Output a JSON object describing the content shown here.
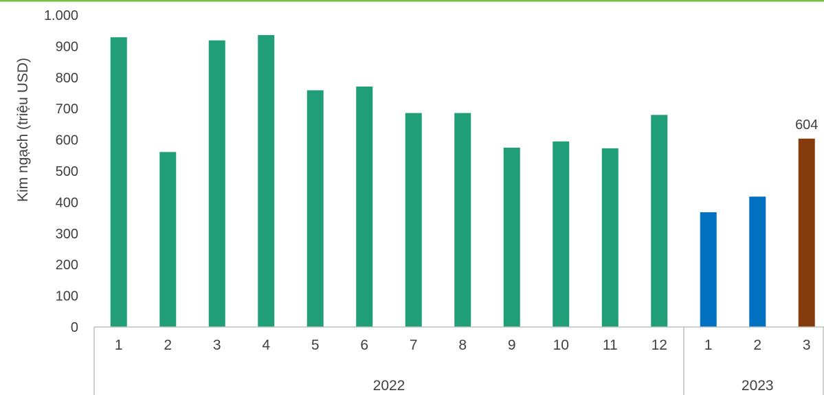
{
  "chart_data": {
    "type": "bar",
    "ylabel": "Kim ngạch (triệu USD)",
    "ylim": [
      0,
      1000
    ],
    "yticks": [
      0,
      100,
      200,
      300,
      400,
      500,
      600,
      700,
      800,
      900,
      1000
    ],
    "ytick_labels": [
      "0",
      "100",
      "200",
      "300",
      "400",
      "500",
      "600",
      "700",
      "800",
      "900",
      "1.000"
    ],
    "grid": false,
    "categories": [
      "1",
      "2",
      "3",
      "4",
      "5",
      "6",
      "7",
      "8",
      "9",
      "10",
      "11",
      "12",
      "1",
      "2",
      "3"
    ],
    "values": [
      929,
      561,
      919,
      936,
      759,
      771,
      686,
      686,
      575,
      595,
      573,
      680,
      368,
      418,
      604
    ],
    "groups": [
      {
        "name": "2022",
        "count": 12
      },
      {
        "name": "2023",
        "count": 3
      }
    ],
    "bar_colors": [
      "#1f9e78",
      "#1f9e78",
      "#1f9e78",
      "#1f9e78",
      "#1f9e78",
      "#1f9e78",
      "#1f9e78",
      "#1f9e78",
      "#1f9e78",
      "#1f9e78",
      "#1f9e78",
      "#1f9e78",
      "#0070c0",
      "#0070c0",
      "#843c0c"
    ],
    "data_labels": [
      {
        "index": 14,
        "text": "604"
      }
    ]
  },
  "colors": {
    "top_border": "#7ac143",
    "axis_line": "#bfbfbf"
  }
}
